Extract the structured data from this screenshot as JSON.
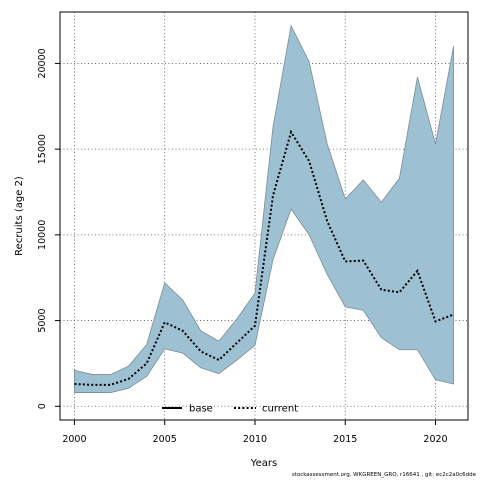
{
  "chart_data": {
    "type": "area",
    "xlabel": "Years",
    "ylabel": "Recruits (age 2)",
    "xlim": [
      1999.2,
      2021.8
    ],
    "ylim": [
      -800,
      23000
    ],
    "xticks": [
      2000,
      2005,
      2010,
      2015,
      2020
    ],
    "yticks": [
      0,
      5000,
      10000,
      15000,
      20000
    ],
    "grid": true,
    "legend_position": "bottom-center",
    "band": {
      "x": [
        2000,
        2001,
        2002,
        2003,
        2004,
        2005,
        2006,
        2007,
        2008,
        2009,
        2010,
        2011,
        2012,
        2013,
        2014,
        2015,
        2016,
        2017,
        2018,
        2019,
        2020,
        2021
      ],
      "upper": [
        2100,
        1850,
        1850,
        2350,
        3600,
        7200,
        6200,
        4400,
        3800,
        5100,
        6600,
        16300,
        22200,
        20100,
        15300,
        12100,
        13200,
        11900,
        13300,
        19200,
        15300,
        21000
      ],
      "lower": [
        800,
        800,
        800,
        1050,
        1750,
        3350,
        3100,
        2250,
        1900,
        2700,
        3550,
        8550,
        11500,
        10000,
        7700,
        5800,
        5600,
        4000,
        3300,
        3300,
        1550,
        1300
      ],
      "color": "#9dc1d3",
      "edge_color": "#7a8c96"
    },
    "series": [
      {
        "name": "current",
        "style": "dotted",
        "color": "#000000",
        "x": [
          2000,
          2001,
          2002,
          2003,
          2004,
          2005,
          2006,
          2007,
          2008,
          2009,
          2010,
          2011,
          2012,
          2013,
          2014,
          2015,
          2016,
          2017,
          2018,
          2019,
          2020,
          2021
        ],
        "y": [
          1300,
          1250,
          1250,
          1600,
          2500,
          4900,
          4400,
          3200,
          2700,
          3700,
          4700,
          12300,
          16000,
          14300,
          10800,
          8450,
          8500,
          6800,
          6650,
          7900,
          4950,
          5350
        ]
      }
    ],
    "legend": [
      {
        "label": "base",
        "style": "solid",
        "color": "#000000"
      },
      {
        "label": "current",
        "style": "dotted",
        "color": "#000000"
      }
    ]
  },
  "footer": "stockassessment.org, WKGREEN_GRO, r16641 , git: ec2c2a0c6dde"
}
